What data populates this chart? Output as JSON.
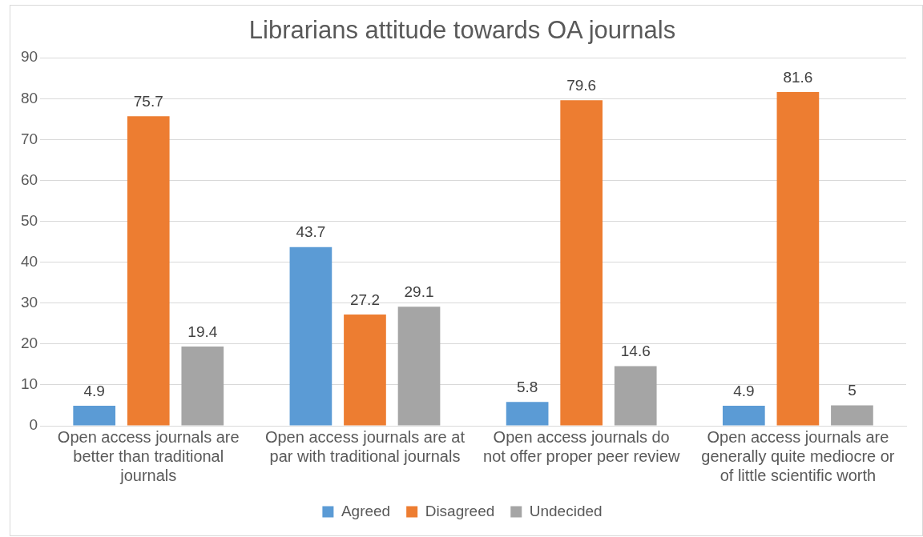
{
  "chart_data": {
    "type": "bar",
    "title": "Librarians attitude towards OA journals",
    "categories": [
      "Open access journals are better than traditional journals",
      "Open access journals are at par with traditional journals",
      "Open access journals do not offer proper peer review",
      "Open access journals are generally quite mediocre or of little scientific worth"
    ],
    "series": [
      {
        "name": "Agreed",
        "color": "#5b9bd5",
        "values": [
          4.9,
          43.7,
          5.8,
          4.9
        ]
      },
      {
        "name": "Disagreed",
        "color": "#ed7d31",
        "values": [
          75.7,
          27.2,
          79.6,
          81.6
        ]
      },
      {
        "name": "Undecided",
        "color": "#a5a5a5",
        "values": [
          19.4,
          29.1,
          14.6,
          5
        ]
      }
    ],
    "ylim": [
      0,
      90
    ],
    "yticks": [
      0,
      10,
      20,
      30,
      40,
      50,
      60,
      70,
      80,
      90
    ],
    "grid": "y",
    "legend": "bottom",
    "data_labels": true
  }
}
